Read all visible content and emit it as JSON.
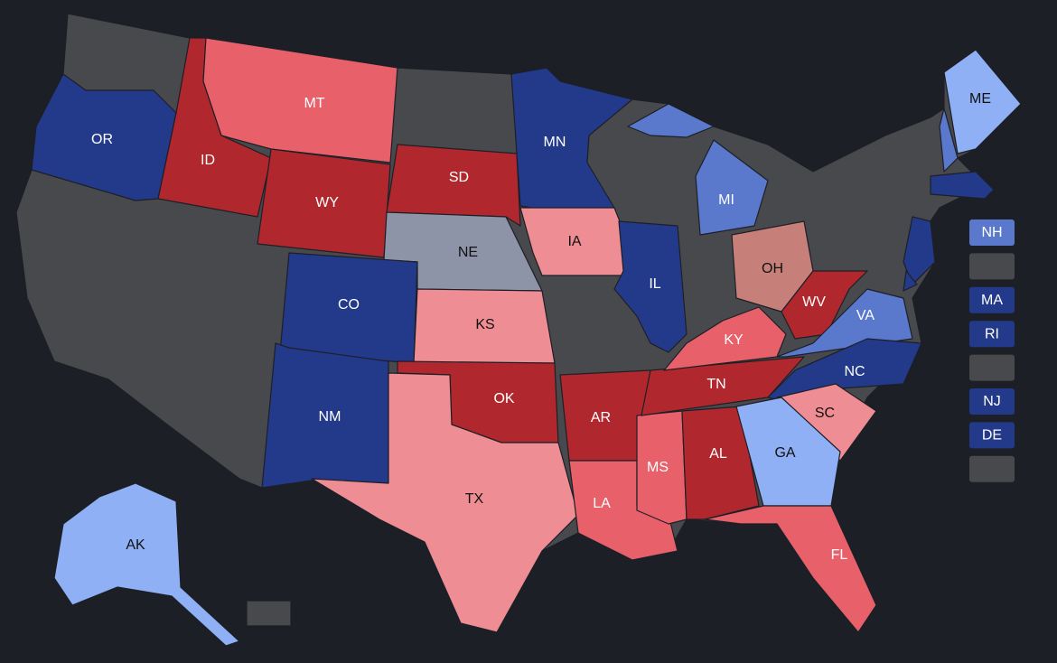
{
  "states": [
    {
      "label": "OR",
      "color": "#23398a",
      "text_color": "#ffffff"
    },
    {
      "label": "ID",
      "color": "#b0282e",
      "text_color": "#ffffff"
    },
    {
      "label": "MT",
      "color": "#e8606a",
      "text_color": "#ffffff"
    },
    {
      "label": "WY",
      "color": "#b0282e",
      "text_color": "#ffffff"
    },
    {
      "label": "SD",
      "color": "#b0282e",
      "text_color": "#ffffff"
    },
    {
      "label": "NE",
      "color": "#8d94a8",
      "text_color": "#111111"
    },
    {
      "label": "CO",
      "color": "#23398a",
      "text_color": "#ffffff"
    },
    {
      "label": "KS",
      "color": "#ef8d94",
      "text_color": "#111111"
    },
    {
      "label": "NM",
      "color": "#23398a",
      "text_color": "#ffffff"
    },
    {
      "label": "OK",
      "color": "#b0282e",
      "text_color": "#ffffff"
    },
    {
      "label": "TX",
      "color": "#ef8d94",
      "text_color": "#111111"
    },
    {
      "label": "MN",
      "color": "#23398a",
      "text_color": "#ffffff"
    },
    {
      "label": "IA",
      "color": "#ef8d94",
      "text_color": "#111111"
    },
    {
      "label": "IL",
      "color": "#23398a",
      "text_color": "#ffffff"
    },
    {
      "label": "AR",
      "color": "#b0282e",
      "text_color": "#ffffff"
    },
    {
      "label": "LA",
      "color": "#e8606a",
      "text_color": "#ffffff"
    },
    {
      "label": "MS",
      "color": "#e8606a",
      "text_color": "#ffffff"
    },
    {
      "label": "AL",
      "color": "#b0282e",
      "text_color": "#ffffff"
    },
    {
      "label": "TN",
      "color": "#b0282e",
      "text_color": "#ffffff"
    },
    {
      "label": "KY",
      "color": "#e8606a",
      "text_color": "#ffffff"
    },
    {
      "label": "MI",
      "color": "#5a78cc",
      "text_color": "#ffffff"
    },
    {
      "label": "OH",
      "color": "#c77f7a",
      "text_color": "#111111"
    },
    {
      "label": "WV",
      "color": "#b0282e",
      "text_color": "#ffffff"
    },
    {
      "label": "VA",
      "color": "#5a78cc",
      "text_color": "#ffffff"
    },
    {
      "label": "NC",
      "color": "#23398a",
      "text_color": "#ffffff"
    },
    {
      "label": "SC",
      "color": "#ef8d94",
      "text_color": "#111111"
    },
    {
      "label": "GA",
      "color": "#8fb0f5",
      "text_color": "#111111"
    },
    {
      "label": "FL",
      "color": "#e8606a",
      "text_color": "#ffffff"
    },
    {
      "label": "ME",
      "color": "#8fb0f5",
      "text_color": "#111111"
    },
    {
      "label": "AK",
      "color": "#8fb0f5",
      "text_color": "#111111"
    }
  ],
  "side_boxes": [
    {
      "label": "NH",
      "color": "#5a78cc"
    },
    {
      "color": "#48494d"
    },
    {
      "label": "MA",
      "color": "#23398a"
    },
    {
      "label": "RI",
      "color": "#23398a"
    },
    {
      "color": "#48494d"
    },
    {
      "label": "NJ",
      "color": "#23398a"
    },
    {
      "label": "DE",
      "color": "#23398a"
    },
    {
      "color": "#48494d"
    }
  ],
  "small_states": [
    {
      "color": "#5a78cc"
    },
    {
      "color": "#23398a"
    },
    {
      "color": "#23398a"
    },
    {
      "color": "#23398a"
    }
  ]
}
